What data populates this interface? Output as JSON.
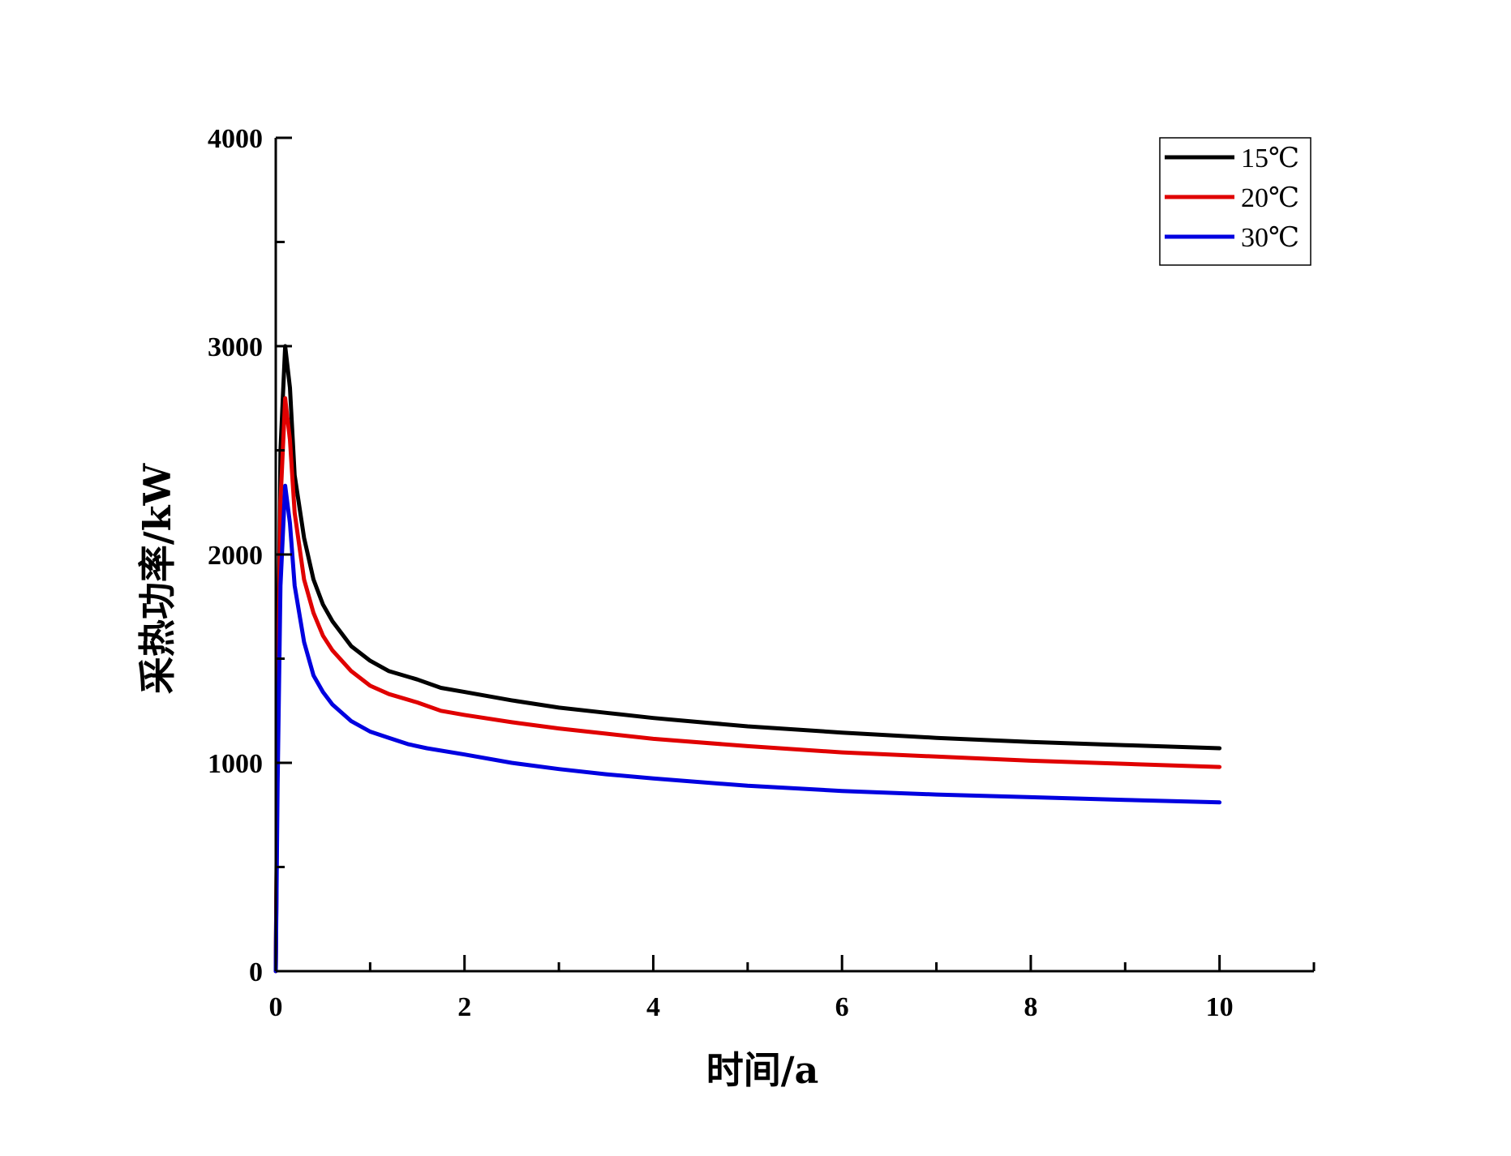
{
  "chart_data": {
    "type": "line",
    "title": "",
    "xlabel": "时间/a",
    "ylabel": "采热功率/kW",
    "xlim": [
      0,
      11
    ],
    "ylim": [
      0,
      4000
    ],
    "xticks": [
      0,
      2,
      4,
      6,
      8,
      10
    ],
    "yticks": [
      0,
      1000,
      2000,
      3000,
      4000
    ],
    "grid": false,
    "legend_position": "top-right",
    "series": [
      {
        "name": "15℃",
        "color": "#000000",
        "x": [
          0,
          0.02,
          0.05,
          0.1,
          0.15,
          0.2,
          0.3,
          0.4,
          0.5,
          0.6,
          0.8,
          1.0,
          1.2,
          1.5,
          1.75,
          2.0,
          2.5,
          3.0,
          3.5,
          4.0,
          5.0,
          6.0,
          7.0,
          8.0,
          9.0,
          10.0
        ],
        "y": [
          0,
          1200,
          2500,
          3000,
          2800,
          2380,
          2080,
          1880,
          1760,
          1680,
          1560,
          1490,
          1440,
          1400,
          1360,
          1340,
          1300,
          1265,
          1240,
          1215,
          1175,
          1145,
          1120,
          1100,
          1085,
          1070
        ]
      },
      {
        "name": "20℃",
        "color": "#e00000",
        "x": [
          0,
          0.02,
          0.05,
          0.1,
          0.15,
          0.2,
          0.3,
          0.4,
          0.5,
          0.6,
          0.8,
          1.0,
          1.2,
          1.5,
          1.75,
          2.0,
          2.5,
          3.0,
          3.5,
          4.0,
          5.0,
          6.0,
          7.0,
          8.0,
          9.0,
          10.0
        ],
        "y": [
          0,
          1100,
          2250,
          2750,
          2550,
          2200,
          1880,
          1720,
          1610,
          1540,
          1440,
          1370,
          1330,
          1290,
          1250,
          1230,
          1195,
          1165,
          1140,
          1115,
          1080,
          1050,
          1030,
          1010,
          995,
          980
        ]
      },
      {
        "name": "30℃",
        "color": "#0000e0",
        "x": [
          0,
          0.02,
          0.05,
          0.1,
          0.15,
          0.2,
          0.3,
          0.4,
          0.5,
          0.6,
          0.8,
          1.0,
          1.2,
          1.4,
          1.6,
          2.0,
          2.5,
          3.0,
          3.5,
          4.0,
          5.0,
          6.0,
          7.0,
          8.0,
          9.0,
          10.0
        ],
        "y": [
          0,
          900,
          1850,
          2330,
          2150,
          1850,
          1580,
          1420,
          1340,
          1280,
          1200,
          1150,
          1120,
          1090,
          1070,
          1040,
          1000,
          970,
          945,
          925,
          890,
          865,
          848,
          835,
          822,
          810
        ]
      }
    ]
  }
}
